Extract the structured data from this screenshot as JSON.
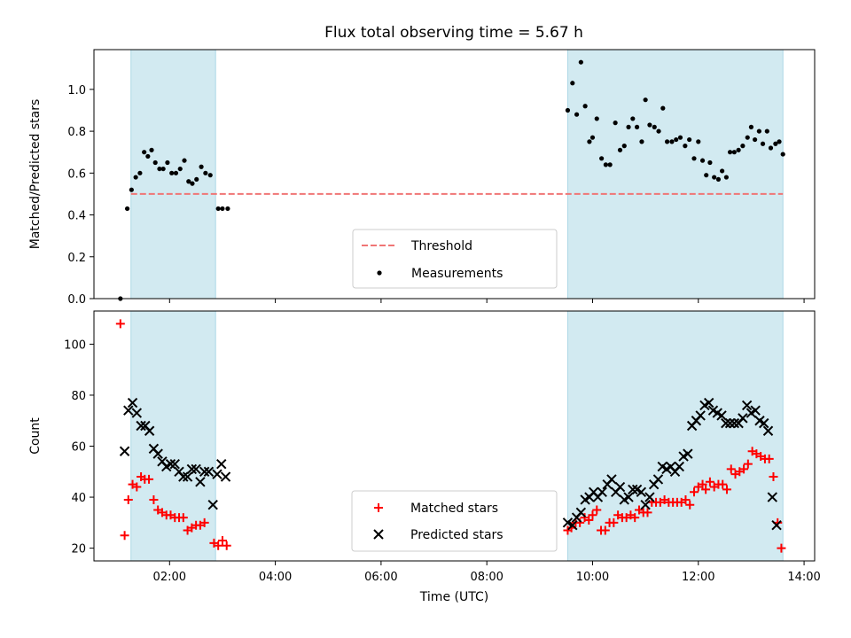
{
  "title": "Flux total observing time = 5.67 h",
  "chart_data": [
    {
      "type": "scatter",
      "panel": "top",
      "xlabel": "",
      "ylabel": "Matched/Predicted stars",
      "xlim": [
        0.57,
        14.2
      ],
      "ylim": [
        0.0,
        1.19
      ],
      "yticks": [
        "0.0",
        "0.2",
        "0.4",
        "0.6",
        "0.8",
        "1.0"
      ],
      "shaded_intervals": [
        [
          1.27,
          2.87
        ],
        [
          9.53,
          13.6
        ]
      ],
      "threshold": {
        "name": "Threshold",
        "value": 0.5,
        "x_range": [
          1.27,
          13.6
        ],
        "color": "#f07575"
      },
      "series": [
        {
          "name": "Measurements",
          "color": "#000000",
          "marker": "dot",
          "points": [
            [
              1.07,
              0.0
            ],
            [
              1.2,
              0.43
            ],
            [
              1.28,
              0.52
            ],
            [
              1.36,
              0.58
            ],
            [
              1.44,
              0.6
            ],
            [
              1.52,
              0.7
            ],
            [
              1.59,
              0.68
            ],
            [
              1.66,
              0.71
            ],
            [
              1.73,
              0.65
            ],
            [
              1.81,
              0.62
            ],
            [
              1.88,
              0.62
            ],
            [
              1.96,
              0.65
            ],
            [
              2.04,
              0.6
            ],
            [
              2.12,
              0.6
            ],
            [
              2.2,
              0.62
            ],
            [
              2.28,
              0.66
            ],
            [
              2.36,
              0.56
            ],
            [
              2.43,
              0.55
            ],
            [
              2.51,
              0.57
            ],
            [
              2.6,
              0.63
            ],
            [
              2.68,
              0.6
            ],
            [
              2.77,
              0.59
            ],
            [
              2.92,
              0.43
            ],
            [
              3.0,
              0.43
            ],
            [
              3.1,
              0.43
            ],
            [
              9.53,
              0.9
            ],
            [
              9.62,
              1.03
            ],
            [
              9.7,
              0.88
            ],
            [
              9.78,
              1.13
            ],
            [
              9.86,
              0.92
            ],
            [
              9.94,
              0.75
            ],
            [
              10.0,
              0.77
            ],
            [
              10.08,
              0.86
            ],
            [
              10.17,
              0.67
            ],
            [
              10.25,
              0.64
            ],
            [
              10.33,
              0.64
            ],
            [
              10.43,
              0.84
            ],
            [
              10.52,
              0.71
            ],
            [
              10.6,
              0.73
            ],
            [
              10.68,
              0.82
            ],
            [
              10.76,
              0.86
            ],
            [
              10.84,
              0.82
            ],
            [
              10.93,
              0.75
            ],
            [
              11.0,
              0.95
            ],
            [
              11.08,
              0.83
            ],
            [
              11.17,
              0.82
            ],
            [
              11.25,
              0.8
            ],
            [
              11.33,
              0.91
            ],
            [
              11.41,
              0.75
            ],
            [
              11.5,
              0.75
            ],
            [
              11.58,
              0.76
            ],
            [
              11.66,
              0.77
            ],
            [
              11.75,
              0.73
            ],
            [
              11.83,
              0.76
            ],
            [
              11.92,
              0.67
            ],
            [
              12.0,
              0.75
            ],
            [
              12.08,
              0.66
            ],
            [
              12.15,
              0.59
            ],
            [
              12.22,
              0.65
            ],
            [
              12.3,
              0.58
            ],
            [
              12.38,
              0.57
            ],
            [
              12.45,
              0.61
            ],
            [
              12.53,
              0.58
            ],
            [
              12.6,
              0.7
            ],
            [
              12.68,
              0.7
            ],
            [
              12.76,
              0.71
            ],
            [
              12.84,
              0.73
            ],
            [
              12.93,
              0.77
            ],
            [
              13.0,
              0.82
            ],
            [
              13.07,
              0.76
            ],
            [
              13.15,
              0.8
            ],
            [
              13.22,
              0.74
            ],
            [
              13.3,
              0.8
            ],
            [
              13.37,
              0.72
            ],
            [
              13.46,
              0.74
            ],
            [
              13.53,
              0.75
            ],
            [
              13.6,
              0.69
            ]
          ]
        }
      ],
      "legend": {
        "placement": "lower center",
        "entries": [
          "Threshold",
          "Measurements"
        ]
      }
    },
    {
      "type": "scatter",
      "panel": "bottom",
      "xlabel": "Time (UTC)",
      "ylabel": "Count",
      "xlim": [
        0.57,
        14.2
      ],
      "ylim": [
        15,
        113
      ],
      "xticks": [
        {
          "value": 2,
          "label": "02:00"
        },
        {
          "value": 4,
          "label": "04:00"
        },
        {
          "value": 6,
          "label": "06:00"
        },
        {
          "value": 8,
          "label": "08:00"
        },
        {
          "value": 10,
          "label": "10:00"
        },
        {
          "value": 12,
          "label": "12:00"
        },
        {
          "value": 14,
          "label": "14:00"
        }
      ],
      "yticks": [
        "20",
        "40",
        "60",
        "80",
        "100"
      ],
      "shaded_intervals": [
        [
          1.27,
          2.87
        ],
        [
          9.53,
          13.6
        ]
      ],
      "series": [
        {
          "name": "Matched stars",
          "color": "#ff0000",
          "marker": "plus",
          "points": [
            [
              1.07,
              108
            ],
            [
              1.15,
              25
            ],
            [
              1.22,
              39
            ],
            [
              1.3,
              45
            ],
            [
              1.38,
              44
            ],
            [
              1.46,
              48
            ],
            [
              1.53,
              47
            ],
            [
              1.61,
              47
            ],
            [
              1.7,
              39
            ],
            [
              1.78,
              35
            ],
            [
              1.86,
              34
            ],
            [
              1.94,
              33
            ],
            [
              2.02,
              33
            ],
            [
              2.1,
              32
            ],
            [
              2.18,
              32
            ],
            [
              2.26,
              32
            ],
            [
              2.34,
              27
            ],
            [
              2.42,
              28
            ],
            [
              2.5,
              29
            ],
            [
              2.58,
              29
            ],
            [
              2.66,
              30
            ],
            [
              2.84,
              22
            ],
            [
              2.92,
              21
            ],
            [
              3.0,
              23
            ],
            [
              3.08,
              21
            ],
            [
              9.53,
              27
            ],
            [
              9.6,
              28
            ],
            [
              9.68,
              30
            ],
            [
              9.76,
              30
            ],
            [
              9.85,
              32
            ],
            [
              9.93,
              31
            ],
            [
              10.0,
              33
            ],
            [
              10.08,
              35
            ],
            [
              10.16,
              27
            ],
            [
              10.24,
              27
            ],
            [
              10.32,
              30
            ],
            [
              10.4,
              30
            ],
            [
              10.48,
              33
            ],
            [
              10.56,
              32
            ],
            [
              10.64,
              32
            ],
            [
              10.72,
              33
            ],
            [
              10.8,
              32
            ],
            [
              10.88,
              35
            ],
            [
              10.96,
              34
            ],
            [
              11.04,
              34
            ],
            [
              11.12,
              38
            ],
            [
              11.2,
              38
            ],
            [
              11.28,
              38
            ],
            [
              11.36,
              39
            ],
            [
              11.44,
              38
            ],
            [
              11.52,
              38
            ],
            [
              11.6,
              38
            ],
            [
              11.68,
              38
            ],
            [
              11.76,
              39
            ],
            [
              11.84,
              37
            ],
            [
              11.92,
              42
            ],
            [
              12.0,
              44
            ],
            [
              12.08,
              45
            ],
            [
              12.14,
              43
            ],
            [
              12.22,
              46
            ],
            [
              12.3,
              44
            ],
            [
              12.38,
              45
            ],
            [
              12.46,
              45
            ],
            [
              12.54,
              43
            ],
            [
              12.62,
              51
            ],
            [
              12.7,
              49
            ],
            [
              12.78,
              50
            ],
            [
              12.86,
              51
            ],
            [
              12.94,
              53
            ],
            [
              13.02,
              58
            ],
            [
              13.1,
              57
            ],
            [
              13.18,
              56
            ],
            [
              13.26,
              55
            ],
            [
              13.34,
              55
            ],
            [
              13.42,
              48
            ],
            [
              13.5,
              30
            ],
            [
              13.57,
              20
            ]
          ]
        },
        {
          "name": "Predicted stars",
          "color": "#000000",
          "marker": "x",
          "points": [
            [
              1.15,
              58
            ],
            [
              1.22,
              74
            ],
            [
              1.3,
              77
            ],
            [
              1.38,
              73
            ],
            [
              1.46,
              68
            ],
            [
              1.54,
              68
            ],
            [
              1.62,
              66
            ],
            [
              1.7,
              59
            ],
            [
              1.78,
              57
            ],
            [
              1.86,
              54
            ],
            [
              1.94,
              52
            ],
            [
              2.02,
              53
            ],
            [
              2.1,
              53
            ],
            [
              2.18,
              50
            ],
            [
              2.26,
              48
            ],
            [
              2.34,
              48
            ],
            [
              2.42,
              51
            ],
            [
              2.5,
              51
            ],
            [
              2.58,
              46
            ],
            [
              2.66,
              50
            ],
            [
              2.74,
              50
            ],
            [
              2.82,
              37
            ],
            [
              2.9,
              49
            ],
            [
              2.98,
              53
            ],
            [
              3.06,
              48
            ],
            [
              9.53,
              30
            ],
            [
              9.62,
              29
            ],
            [
              9.7,
              32
            ],
            [
              9.78,
              34
            ],
            [
              9.86,
              39
            ],
            [
              9.94,
              40
            ],
            [
              10.02,
              42
            ],
            [
              10.1,
              40
            ],
            [
              10.18,
              42
            ],
            [
              10.28,
              45
            ],
            [
              10.36,
              47
            ],
            [
              10.44,
              42
            ],
            [
              10.52,
              44
            ],
            [
              10.6,
              39
            ],
            [
              10.68,
              40
            ],
            [
              10.76,
              43
            ],
            [
              10.84,
              43
            ],
            [
              10.92,
              42
            ],
            [
              11.0,
              37
            ],
            [
              11.08,
              40
            ],
            [
              11.16,
              45
            ],
            [
              11.24,
              47
            ],
            [
              11.32,
              52
            ],
            [
              11.4,
              51
            ],
            [
              11.48,
              52
            ],
            [
              11.56,
              50
            ],
            [
              11.64,
              52
            ],
            [
              11.72,
              56
            ],
            [
              11.8,
              57
            ],
            [
              11.88,
              68
            ],
            [
              11.96,
              70
            ],
            [
              12.04,
              72
            ],
            [
              12.12,
              76
            ],
            [
              12.2,
              77
            ],
            [
              12.28,
              74
            ],
            [
              12.36,
              73
            ],
            [
              12.44,
              72
            ],
            [
              12.52,
              69
            ],
            [
              12.6,
              69
            ],
            [
              12.68,
              69
            ],
            [
              12.76,
              69
            ],
            [
              12.84,
              71
            ],
            [
              12.92,
              76
            ],
            [
              13.0,
              73
            ],
            [
              13.08,
              74
            ],
            [
              13.16,
              70
            ],
            [
              13.24,
              69
            ],
            [
              13.32,
              66
            ],
            [
              13.4,
              40
            ],
            [
              13.48,
              29
            ]
          ]
        }
      ],
      "legend": {
        "placement": "lower center",
        "entries": [
          "Matched stars",
          "Predicted stars"
        ]
      }
    }
  ],
  "colors": {
    "shade": "#add8e6",
    "threshold": "#f07575",
    "matched": "#ff0000",
    "predicted": "#000000"
  }
}
